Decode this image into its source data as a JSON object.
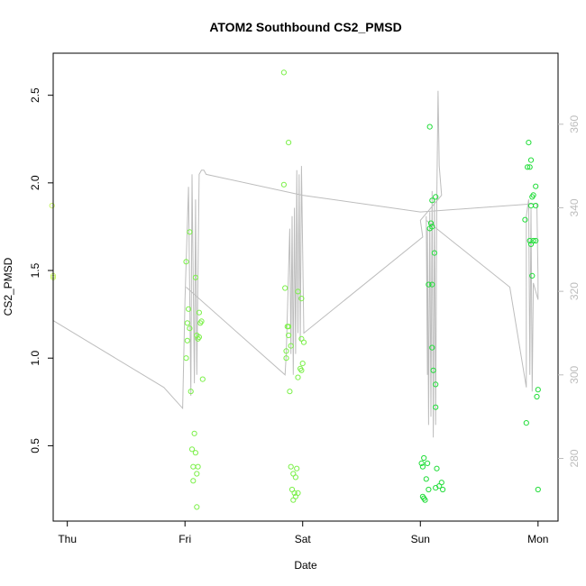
{
  "chart_data": {
    "type": "scatter",
    "title": "ATOM2 Southbound CS2_PMSD",
    "xlabel": "Date",
    "ylabel": "CS2_PMSD",
    "xlim": [
      -0.12,
      4.17
    ],
    "ylim": [
      0.07,
      2.74
    ],
    "y2lim": [
      265.0,
      377.0
    ],
    "x_ticks": [
      {
        "value": 0,
        "label": "Thu"
      },
      {
        "value": 1,
        "label": "Fri"
      },
      {
        "value": 2,
        "label": "Sat"
      },
      {
        "value": 3,
        "label": "Sun"
      },
      {
        "value": 4,
        "label": "Mon"
      }
    ],
    "y_ticks": [
      {
        "value": 0.5,
        "label": "0.5"
      },
      {
        "value": 1.0,
        "label": "1.0"
      },
      {
        "value": 1.5,
        "label": "1.5"
      },
      {
        "value": 2.0,
        "label": "2.0"
      },
      {
        "value": 2.5,
        "label": "2.5"
      }
    ],
    "y2_ticks": [
      {
        "value": 280,
        "label": "280"
      },
      {
        "value": 300,
        "label": "300"
      },
      {
        "value": 320,
        "label": "320"
      },
      {
        "value": 340,
        "label": "340"
      },
      {
        "value": 360,
        "label": "360"
      }
    ],
    "grid": false,
    "colors": {
      "points_early": "#c8f56a",
      "points_mid": "#7cf04a",
      "points_late": "#22dd3a",
      "line": "#bdbdbd",
      "axis": "#000000",
      "right_axis": "#bdbdbd"
    },
    "series": [
      {
        "axis": "left",
        "color": "#c8f56a",
        "points": [
          [
            -0.13,
            1.87
          ],
          [
            -0.12,
            1.47
          ],
          [
            -0.12,
            1.46
          ]
        ]
      },
      {
        "axis": "left",
        "color": "#7cf04a",
        "points": [
          [
            1.01,
            1.55
          ],
          [
            1.04,
            1.72
          ],
          [
            1.09,
            1.46
          ],
          [
            1.03,
            1.28
          ],
          [
            1.12,
            1.26
          ],
          [
            1.02,
            1.2
          ],
          [
            1.04,
            1.17
          ],
          [
            1.14,
            1.21
          ],
          [
            1.13,
            1.2
          ],
          [
            1.1,
            1.13
          ],
          [
            1.12,
            1.12
          ],
          [
            1.11,
            1.11
          ],
          [
            1.02,
            1.1
          ],
          [
            1.01,
            1.0
          ],
          [
            1.15,
            0.88
          ],
          [
            1.05,
            0.81
          ],
          [
            1.08,
            0.57
          ],
          [
            1.06,
            0.48
          ],
          [
            1.09,
            0.46
          ],
          [
            1.07,
            0.38
          ],
          [
            1.11,
            0.38
          ],
          [
            1.1,
            0.34
          ],
          [
            1.07,
            0.3
          ],
          [
            1.1,
            0.15
          ],
          [
            1.84,
            2.63
          ],
          [
            1.88,
            2.23
          ],
          [
            1.84,
            1.99
          ],
          [
            1.85,
            1.4
          ],
          [
            1.96,
            1.38
          ],
          [
            1.99,
            1.34
          ],
          [
            1.87,
            1.18
          ],
          [
            1.88,
            1.18
          ],
          [
            1.88,
            1.13
          ],
          [
            1.99,
            1.11
          ],
          [
            2.01,
            1.09
          ],
          [
            1.9,
            1.07
          ],
          [
            1.86,
            1.04
          ],
          [
            1.86,
            1.0
          ],
          [
            2.0,
            0.97
          ],
          [
            1.98,
            0.94
          ],
          [
            1.99,
            0.93
          ],
          [
            1.96,
            0.89
          ],
          [
            1.89,
            0.81
          ],
          [
            1.9,
            0.38
          ],
          [
            1.95,
            0.37
          ],
          [
            1.92,
            0.34
          ],
          [
            1.94,
            0.32
          ],
          [
            1.91,
            0.25
          ],
          [
            1.93,
            0.23
          ],
          [
            1.96,
            0.23
          ],
          [
            1.94,
            0.21
          ],
          [
            1.92,
            0.19
          ]
        ]
      },
      {
        "axis": "left",
        "color": "#22dd3a",
        "points": [
          [
            3.08,
            2.32
          ],
          [
            3.13,
            1.92
          ],
          [
            3.1,
            1.9
          ],
          [
            3.09,
            1.77
          ],
          [
            3.1,
            1.75
          ],
          [
            3.08,
            1.74
          ],
          [
            3.12,
            1.6
          ],
          [
            3.07,
            1.42
          ],
          [
            3.1,
            1.42
          ],
          [
            3.1,
            1.06
          ],
          [
            3.11,
            0.93
          ],
          [
            3.13,
            0.85
          ],
          [
            3.13,
            0.72
          ],
          [
            3.03,
            0.43
          ],
          [
            3.01,
            0.4
          ],
          [
            3.06,
            0.4
          ],
          [
            3.02,
            0.38
          ],
          [
            3.14,
            0.37
          ],
          [
            3.05,
            0.31
          ],
          [
            3.18,
            0.29
          ],
          [
            3.16,
            0.27
          ],
          [
            3.13,
            0.26
          ],
          [
            3.07,
            0.25
          ],
          [
            3.19,
            0.25
          ],
          [
            3.02,
            0.21
          ],
          [
            3.03,
            0.2
          ],
          [
            3.04,
            0.19
          ],
          [
            3.92,
            2.23
          ],
          [
            3.94,
            2.13
          ],
          [
            3.93,
            2.09
          ],
          [
            3.91,
            2.09
          ],
          [
            3.98,
            1.98
          ],
          [
            3.96,
            1.93
          ],
          [
            3.95,
            1.92
          ],
          [
            3.94,
            1.87
          ],
          [
            3.98,
            1.87
          ],
          [
            3.89,
            1.79
          ],
          [
            3.93,
            1.67
          ],
          [
            3.96,
            1.67
          ],
          [
            3.98,
            1.67
          ],
          [
            3.94,
            1.65
          ],
          [
            3.95,
            1.47
          ],
          [
            4.0,
            0.82
          ],
          [
            3.99,
            0.78
          ],
          [
            3.9,
            0.63
          ],
          [
            4.0,
            0.25
          ]
        ]
      },
      {
        "axis": "right",
        "color": "#bdbdbd",
        "line": [
          [
            -0.12,
            313
          ],
          [
            0.82,
            297
          ],
          [
            0.98,
            292
          ],
          [
            1.0,
            318
          ],
          [
            1.03,
            345
          ],
          [
            1.05,
            295
          ],
          [
            1.06,
            348
          ],
          [
            1.08,
            298
          ],
          [
            1.09,
            342
          ],
          [
            1.1,
            300
          ],
          [
            1.12,
            348
          ],
          [
            1.14,
            349
          ],
          [
            1.16,
            349
          ],
          [
            1.18,
            348
          ],
          [
            2.0,
            343
          ],
          [
            3.0,
            339
          ],
          [
            3.99,
            341
          ],
          [
            4.0,
            323
          ],
          [
            4.0,
            318
          ],
          [
            3.96,
            322
          ],
          [
            3.95,
            296
          ],
          [
            3.94,
            340
          ],
          [
            3.93,
            300
          ],
          [
            3.92,
            342
          ],
          [
            3.9,
            338
          ],
          [
            3.9,
            297
          ],
          [
            3.76,
            321
          ],
          [
            3.05,
            337
          ],
          [
            3.05,
            338
          ],
          [
            3.06,
            300
          ],
          [
            3.06,
            335
          ],
          [
            3.07,
            288
          ],
          [
            3.08,
            339
          ],
          [
            3.09,
            290
          ],
          [
            3.1,
            344
          ],
          [
            3.11,
            285
          ],
          [
            3.12,
            342
          ],
          [
            3.13,
            288
          ],
          [
            3.14,
            342
          ],
          [
            3.15,
            368
          ],
          [
            3.16,
            350
          ],
          [
            3.18,
            343
          ],
          [
            3.0,
            337
          ],
          [
            3.02,
            333
          ],
          [
            2.01,
            310
          ],
          [
            1.99,
            350
          ],
          [
            1.98,
            308
          ],
          [
            1.97,
            348
          ],
          [
            1.96,
            310
          ],
          [
            1.95,
            349
          ],
          [
            1.94,
            305
          ],
          [
            1.93,
            340
          ],
          [
            1.92,
            300
          ],
          [
            1.91,
            338
          ],
          [
            1.9,
            305
          ],
          [
            1.89,
            335
          ],
          [
            1.86,
            305
          ],
          [
            1.85,
            300
          ],
          [
            1.01,
            321
          ]
        ]
      }
    ]
  }
}
